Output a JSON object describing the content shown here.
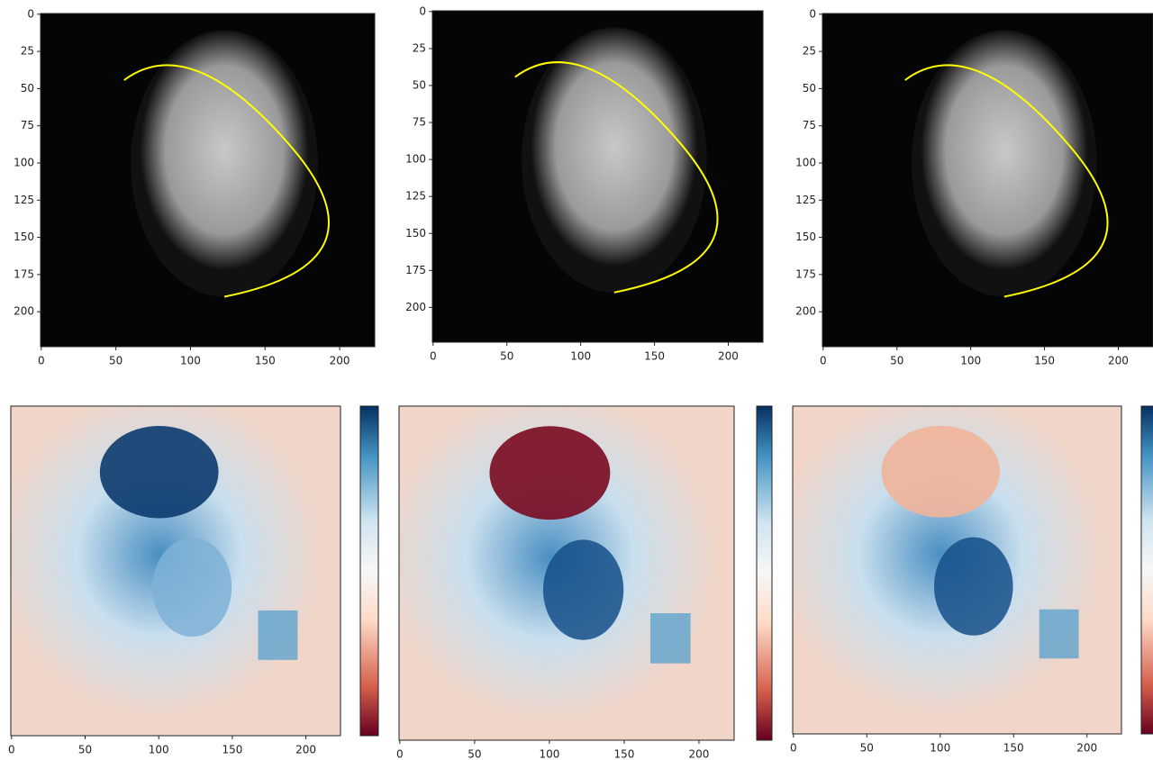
{
  "chart_data": [
    {
      "type": "image",
      "xlim": [
        -0.5,
        223.5
      ],
      "ylim": [
        223.5,
        -0.5
      ],
      "xticks": [
        0,
        50,
        100,
        150,
        200
      ],
      "yticks": [
        0,
        25,
        50,
        75,
        100,
        125,
        150,
        175,
        200
      ]
    },
    {
      "type": "image",
      "xlim": [
        -0.5,
        223.5
      ],
      "ylim": [
        223.5,
        -0.5
      ],
      "xticks": [
        0,
        50,
        100,
        150,
        200
      ],
      "yticks": [
        0,
        25,
        50,
        75,
        100,
        125,
        150,
        175,
        200
      ]
    },
    {
      "type": "image",
      "xlim": [
        -0.5,
        223.5
      ],
      "ylim": [
        223.5,
        -0.5
      ],
      "xticks": [
        0,
        50,
        100,
        150,
        200
      ],
      "yticks": [
        0,
        25,
        50,
        75,
        100,
        125,
        150,
        175,
        200
      ]
    },
    {
      "type": "image",
      "cmap": "RdBu",
      "xlim": [
        -0.5,
        223.5
      ],
      "ylim": [
        223.5,
        -0.5
      ],
      "xticks": [
        0,
        50,
        100,
        150,
        200
      ]
    },
    {
      "type": "image",
      "cmap": "RdBu",
      "xlim": [
        -0.5,
        223.5
      ],
      "ylim": [
        223.5,
        -0.5
      ],
      "xticks": [
        0,
        50,
        100,
        150,
        200
      ]
    },
    {
      "type": "image",
      "cmap": "RdBu",
      "xlim": [
        -0.5,
        223.5
      ],
      "ylim": [
        223.5,
        -0.5
      ],
      "xticks": [
        0,
        50,
        100,
        150,
        200
      ]
    }
  ]
}
